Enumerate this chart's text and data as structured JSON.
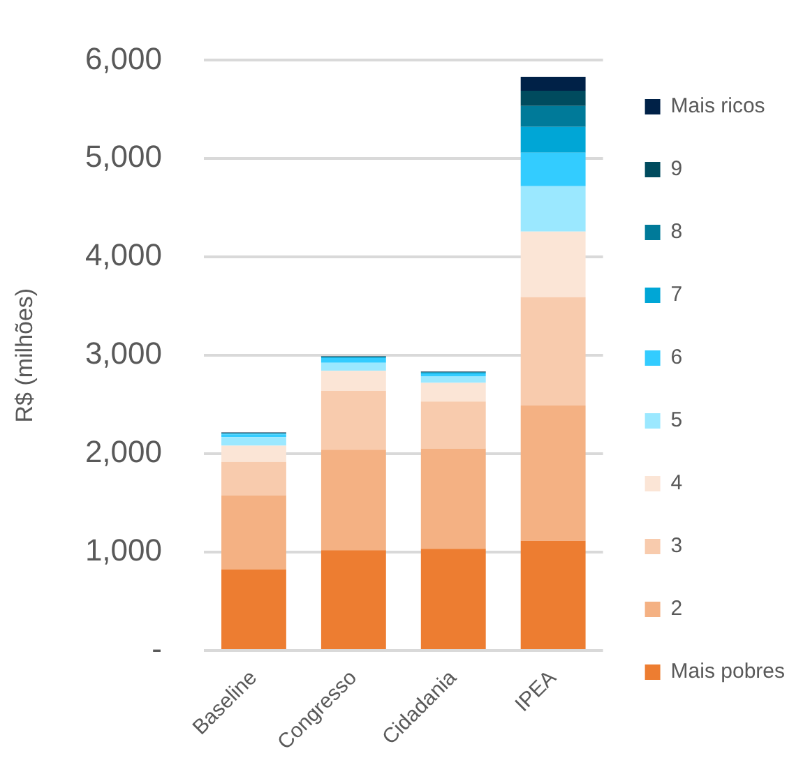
{
  "chart_data": {
    "type": "bar",
    "stacked": true,
    "ylabel": "R$ (milhões)",
    "categories": [
      "Baseline",
      "Congresso",
      "Cidadania",
      "IPEA"
    ],
    "ylim": [
      0,
      6000
    ],
    "yticks": [
      {
        "value": 0,
        "label": "-"
      },
      {
        "value": 1000,
        "label": "1,000"
      },
      {
        "value": 2000,
        "label": "2,000"
      },
      {
        "value": 3000,
        "label": "3,000"
      },
      {
        "value": 4000,
        "label": "4,000"
      },
      {
        "value": 5000,
        "label": "5,000"
      },
      {
        "value": 6000,
        "label": "6,000"
      }
    ],
    "grid": "y",
    "legend": "right",
    "series": [
      {
        "name": "Mais pobres",
        "color": "#ed7d31",
        "values": [
          823,
          1020,
          1034,
          1116
        ]
      },
      {
        "name": "2",
        "color": "#f4b183",
        "values": [
          755,
          1021,
          1020,
          1374
        ]
      },
      {
        "name": "3",
        "color": "#f8cbad",
        "values": [
          340,
          599,
          477,
          1102
        ]
      },
      {
        "name": "4",
        "color": "#fbe5d6",
        "values": [
          164,
          204,
          190,
          667
        ]
      },
      {
        "name": "5",
        "color": "#9be8ff",
        "values": [
          88,
          81,
          68,
          462
        ]
      },
      {
        "name": "6",
        "color": "#33ccff",
        "values": [
          27,
          48,
          27,
          340
        ]
      },
      {
        "name": "7",
        "color": "#00a6d6",
        "values": [
          8,
          8,
          8,
          263
        ]
      },
      {
        "name": "8",
        "color": "#007a99",
        "values": [
          5,
          5,
          5,
          213
        ]
      },
      {
        "name": "9",
        "color": "#004b5e",
        "values": [
          4,
          4,
          4,
          154
        ]
      },
      {
        "name": "Mais ricos",
        "color": "#002147",
        "values": [
          4,
          3,
          4,
          142
        ]
      }
    ]
  }
}
